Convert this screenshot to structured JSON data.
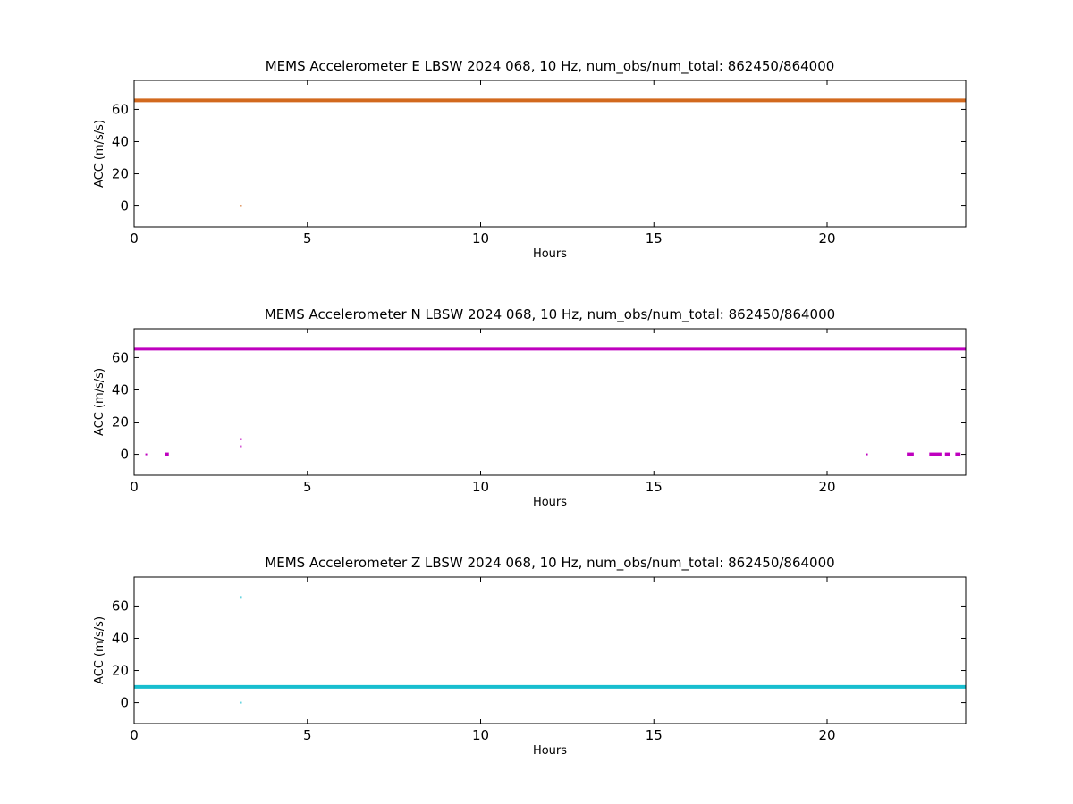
{
  "figure": {
    "background": "#ffffff"
  },
  "chart_data": [
    {
      "type": "scatter",
      "title": "MEMS Accelerometer E LBSW 2024 068, 10 Hz, num_obs/num_total: 862450/864000",
      "xlabel": "Hours",
      "ylabel": "ACC (m/s/s)",
      "xlim": [
        0,
        24
      ],
      "ylim": [
        -13,
        78
      ],
      "xticks": [
        0,
        5,
        10,
        15,
        20
      ],
      "yticks": [
        0,
        20,
        40,
        60
      ],
      "grid": false,
      "color": "#d2691e",
      "series": [
        {
          "segments": [
            {
              "x0": 0,
              "x1": 24,
              "y": 65.6
            }
          ],
          "points": [
            {
              "x": 3.08,
              "y": 0
            }
          ]
        }
      ]
    },
    {
      "type": "scatter",
      "title": "MEMS Accelerometer N LBSW 2024 068, 10 Hz, num_obs/num_total: 862450/864000",
      "xlabel": "Hours",
      "ylabel": "ACC (m/s/s)",
      "xlim": [
        0,
        24
      ],
      "ylim": [
        -13,
        78
      ],
      "xticks": [
        0,
        5,
        10,
        15,
        20
      ],
      "yticks": [
        0,
        20,
        40,
        60
      ],
      "grid": false,
      "color": "#bf00bf",
      "series": [
        {
          "segments": [
            {
              "x0": 0,
              "x1": 24,
              "y": 65.6
            },
            {
              "x0": 0.9,
              "x1": 1.0,
              "y": 0
            },
            {
              "x0": 22.3,
              "x1": 22.5,
              "y": 0
            },
            {
              "x0": 22.95,
              "x1": 23.3,
              "y": 0
            },
            {
              "x0": 23.4,
              "x1": 23.55,
              "y": 0
            },
            {
              "x0": 23.7,
              "x1": 23.85,
              "y": 0
            }
          ],
          "points": [
            {
              "x": 0.35,
              "y": 0
            },
            {
              "x": 3.08,
              "y": 9.5
            },
            {
              "x": 3.08,
              "y": 5
            },
            {
              "x": 21.15,
              "y": 0
            }
          ]
        }
      ]
    },
    {
      "type": "scatter",
      "title": "MEMS Accelerometer Z LBSW 2024 068, 10 Hz, num_obs/num_total: 862450/864000",
      "xlabel": "Hours",
      "ylabel": "ACC (m/s/s)",
      "xlim": [
        0,
        24
      ],
      "ylim": [
        -13,
        78
      ],
      "xticks": [
        0,
        5,
        10,
        15,
        20
      ],
      "yticks": [
        0,
        20,
        40,
        60
      ],
      "grid": false,
      "color": "#17becf",
      "series": [
        {
          "segments": [
            {
              "x0": 0,
              "x1": 24,
              "y": 9.8
            }
          ],
          "points": [
            {
              "x": 3.08,
              "y": 65.6
            },
            {
              "x": 3.08,
              "y": 0
            }
          ]
        }
      ]
    }
  ]
}
